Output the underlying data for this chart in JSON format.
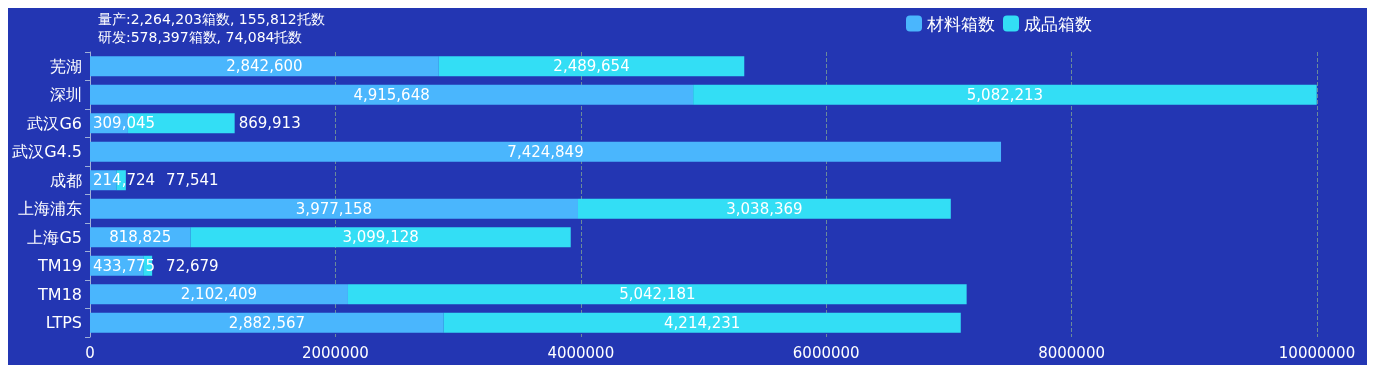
{
  "chart_data": {
    "type": "bar",
    "orientation": "horizontal",
    "stacked": true,
    "categories": [
      "芜湖",
      "深圳",
      "武汉G6",
      "武汉G4.5",
      "成都",
      "上海浦东",
      "上海G5",
      "TM19",
      "TM18",
      "LTPS"
    ],
    "series": [
      {
        "name": "材料箱数",
        "color": "#4ab6fd",
        "values": [
          2842600,
          4915648,
          309045,
          7424849,
          214724,
          3977158,
          818825,
          433775,
          2102409,
          2882567
        ],
        "value_labels": [
          "2,842,600",
          "4,915,648",
          "309,045",
          "7,424,849",
          "214,724",
          "3,977,158",
          "818,825",
          "433,775",
          "2,102,409",
          "2,882,567"
        ]
      },
      {
        "name": "成品箱数",
        "color": "#33def5",
        "values": [
          2489654,
          5082213,
          869913,
          null,
          77541,
          3038369,
          3099128,
          72679,
          5042181,
          4214231
        ],
        "value_labels": [
          "2,489,654",
          "5,082,213",
          "869,913",
          null,
          "77,541",
          "3,038,369",
          "3,099,128",
          "72,679",
          "5,042,181",
          "4,214,231"
        ]
      }
    ],
    "xlim": [
      0,
      10000000
    ],
    "xticks": [
      0,
      2000000,
      4000000,
      6000000,
      8000000,
      10000000
    ],
    "grid": "x",
    "legend": "top right",
    "annotations": [
      "量产:2,264,203箱数, 155,812托数",
      "研发:578,397箱数, 74,084托数"
    ]
  }
}
